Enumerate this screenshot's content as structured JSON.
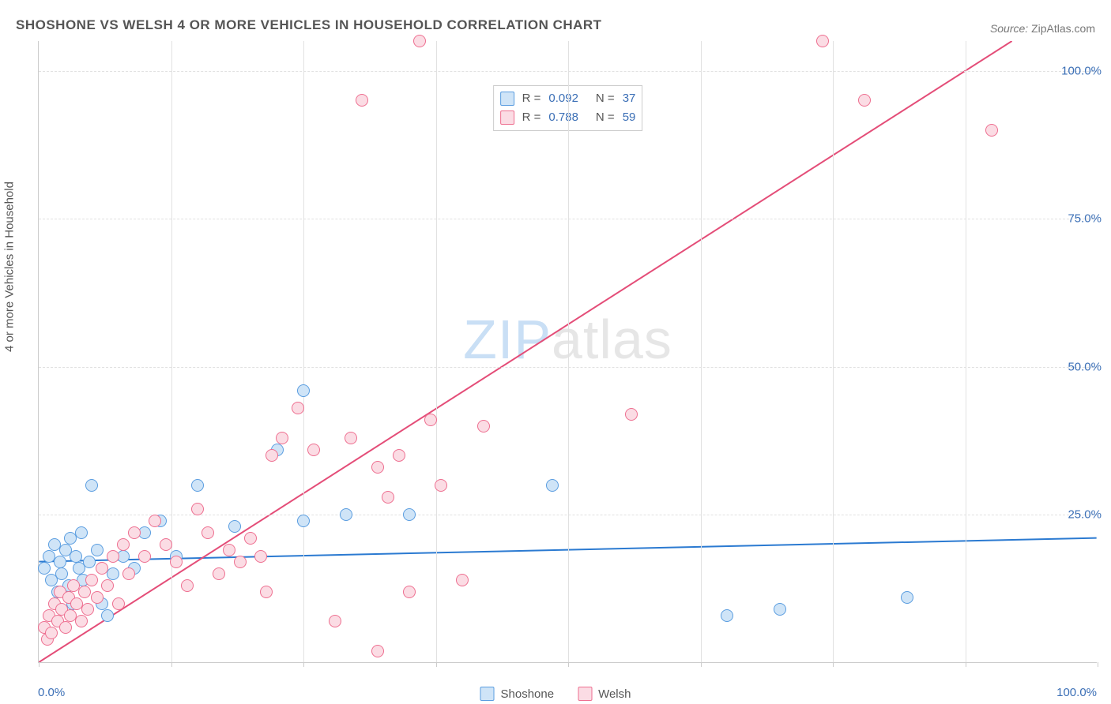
{
  "title": "SHOSHONE VS WELSH 4 OR MORE VEHICLES IN HOUSEHOLD CORRELATION CHART",
  "source_label": "Source:",
  "source_value": "ZipAtlas.com",
  "y_axis_label": "4 or more Vehicles in Household",
  "watermark_a": "ZIP",
  "watermark_b": "atlas",
  "chart": {
    "type": "scatter",
    "background_color": "#ffffff",
    "grid_color": "#e1e1e1",
    "axis_color": "#cccccc",
    "tick_label_color": "#3b6fb6",
    "text_color": "#555555",
    "title_fontsize": 17,
    "label_fontsize": 15,
    "xlim": [
      0,
      100
    ],
    "ylim": [
      0,
      105
    ],
    "x_ticks": [
      0,
      12.5,
      25,
      37.5,
      50,
      62.5,
      75,
      87.5,
      100
    ],
    "x_tick_labels": {
      "0": "0.0%",
      "100": "100.0%"
    },
    "y_gridlines": [
      25,
      50,
      75,
      100
    ],
    "y_tick_labels": {
      "25": "25.0%",
      "50": "50.0%",
      "75": "75.0%",
      "100": "100.0%"
    },
    "marker_radius": 8,
    "marker_border_width": 1.5,
    "line_width": 2,
    "series": [
      {
        "name": "Shoshone",
        "fill_color": "#cfe4f7",
        "stroke_color": "#5a9de0",
        "line_color": "#2b7ad1",
        "R": "0.092",
        "N": "37",
        "regression": {
          "x1": 0,
          "y1": 17.0,
          "x2": 100,
          "y2": 21.0
        },
        "points": [
          [
            0.5,
            16
          ],
          [
            1.0,
            18
          ],
          [
            1.2,
            14
          ],
          [
            1.5,
            20
          ],
          [
            1.8,
            12
          ],
          [
            2.0,
            17
          ],
          [
            2.2,
            15
          ],
          [
            2.5,
            19
          ],
          [
            2.8,
            13
          ],
          [
            3.0,
            21
          ],
          [
            3.2,
            10
          ],
          [
            3.5,
            18
          ],
          [
            3.8,
            16
          ],
          [
            4.0,
            22
          ],
          [
            4.2,
            14
          ],
          [
            4.8,
            17
          ],
          [
            5.0,
            30
          ],
          [
            5.5,
            19
          ],
          [
            6.0,
            10
          ],
          [
            6.5,
            8
          ],
          [
            7.0,
            15
          ],
          [
            8.0,
            18
          ],
          [
            9.0,
            16
          ],
          [
            10.0,
            22
          ],
          [
            11.5,
            24
          ],
          [
            13.0,
            18
          ],
          [
            15.0,
            30
          ],
          [
            18.5,
            23
          ],
          [
            22.5,
            36
          ],
          [
            25.0,
            46
          ],
          [
            25.0,
            24
          ],
          [
            29.0,
            25
          ],
          [
            35.0,
            25
          ],
          [
            48.5,
            30
          ],
          [
            65.0,
            8
          ],
          [
            70.0,
            9
          ],
          [
            82.0,
            11
          ]
        ]
      },
      {
        "name": "Welsh",
        "fill_color": "#fbdce4",
        "stroke_color": "#ee6f90",
        "line_color": "#e44d78",
        "R": "0.788",
        "N": "59",
        "regression": {
          "x1": 0,
          "y1": 0.0,
          "x2": 92,
          "y2": 105.0
        },
        "points": [
          [
            0.5,
            6
          ],
          [
            0.8,
            4
          ],
          [
            1.0,
            8
          ],
          [
            1.2,
            5
          ],
          [
            1.5,
            10
          ],
          [
            1.8,
            7
          ],
          [
            2.0,
            12
          ],
          [
            2.2,
            9
          ],
          [
            2.5,
            6
          ],
          [
            2.8,
            11
          ],
          [
            3.0,
            8
          ],
          [
            3.3,
            13
          ],
          [
            3.6,
            10
          ],
          [
            4.0,
            7
          ],
          [
            4.3,
            12
          ],
          [
            4.6,
            9
          ],
          [
            5.0,
            14
          ],
          [
            5.5,
            11
          ],
          [
            6.0,
            16
          ],
          [
            6.5,
            13
          ],
          [
            7.0,
            18
          ],
          [
            7.5,
            10
          ],
          [
            8.0,
            20
          ],
          [
            8.5,
            15
          ],
          [
            9.0,
            22
          ],
          [
            10.0,
            18
          ],
          [
            11.0,
            24
          ],
          [
            12.0,
            20
          ],
          [
            13.0,
            17
          ],
          [
            14.0,
            13
          ],
          [
            15.0,
            26
          ],
          [
            16.0,
            22
          ],
          [
            17.0,
            15
          ],
          [
            18.0,
            19
          ],
          [
            19.0,
            17
          ],
          [
            20.0,
            21
          ],
          [
            21.0,
            18
          ],
          [
            22.0,
            35
          ],
          [
            23.0,
            38
          ],
          [
            24.5,
            43
          ],
          [
            26.0,
            36
          ],
          [
            28.0,
            7
          ],
          [
            29.5,
            38
          ],
          [
            30.5,
            95
          ],
          [
            32.0,
            33
          ],
          [
            33.0,
            28
          ],
          [
            34.0,
            35
          ],
          [
            35.0,
            12
          ],
          [
            36.0,
            105
          ],
          [
            37.0,
            41
          ],
          [
            38.0,
            30
          ],
          [
            40.0,
            14
          ],
          [
            42.0,
            40
          ],
          [
            56.0,
            42
          ],
          [
            74.0,
            105
          ],
          [
            78.0,
            95
          ],
          [
            90.0,
            90
          ],
          [
            32.0,
            2
          ],
          [
            21.5,
            12
          ]
        ]
      }
    ]
  },
  "legend_bottom": [
    {
      "swatch_fill": "#cfe4f7",
      "swatch_stroke": "#5a9de0",
      "label": "Shoshone"
    },
    {
      "swatch_fill": "#fbdce4",
      "swatch_stroke": "#ee6f90",
      "label": "Welsh"
    }
  ]
}
